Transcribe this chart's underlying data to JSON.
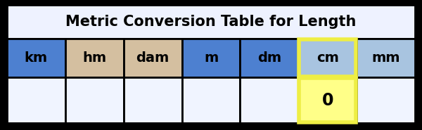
{
  "title": "Metric Conversion Table for Length",
  "headers": [
    "km",
    "hm",
    "dam",
    "m",
    "dm",
    "cm",
    "mm"
  ],
  "data_row": [
    "",
    "",
    "",
    "",
    "",
    "0",
    ""
  ],
  "header_colors": [
    "#4d80d0",
    "#d4bfa0",
    "#d4bfa0",
    "#4d80d0",
    "#4d80d0",
    "#a8c4e0",
    "#a8c4e0"
  ],
  "data_colors": [
    "#f0f4ff",
    "#f0f4ff",
    "#f0f4ff",
    "#f0f4ff",
    "#f0f4ff",
    "#ffff88",
    "#f0f4ff"
  ],
  "highlight_col": 5,
  "title_bg": "#eef2ff",
  "outer_bg": "#000000",
  "border_color": "#000000",
  "highlight_border": "#eeee44",
  "title_fontsize": 15,
  "header_fontsize": 14,
  "data_fontsize": 17
}
